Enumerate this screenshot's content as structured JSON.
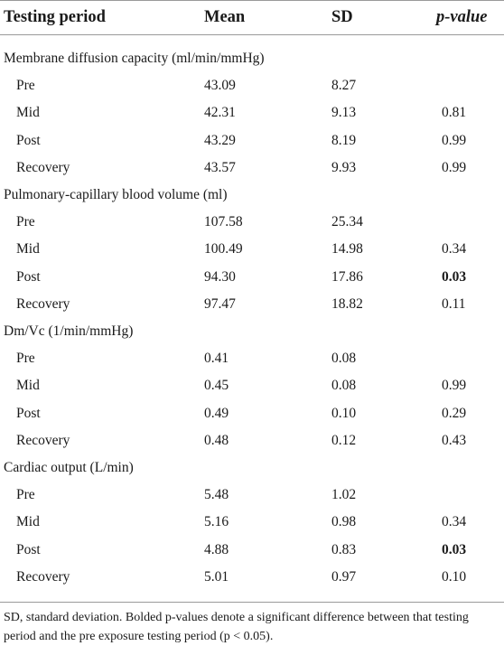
{
  "header": {
    "col_period": "Testing period",
    "col_mean": "Mean",
    "col_sd": "SD",
    "col_p": "p-value"
  },
  "groups": [
    {
      "title": "Membrane diffusion capacity (ml/min/mmHg)",
      "rows": [
        {
          "period": "Pre",
          "mean": "43.09",
          "sd": "8.27",
          "p": "",
          "sig": false
        },
        {
          "period": "Mid",
          "mean": "42.31",
          "sd": "9.13",
          "p": "0.81",
          "sig": false
        },
        {
          "period": "Post",
          "mean": "43.29",
          "sd": "8.19",
          "p": "0.99",
          "sig": false
        },
        {
          "period": "Recovery",
          "mean": "43.57",
          "sd": "9.93",
          "p": "0.99",
          "sig": false
        }
      ]
    },
    {
      "title": "Pulmonary-capillary blood volume (ml)",
      "rows": [
        {
          "period": "Pre",
          "mean": "107.58",
          "sd": "25.34",
          "p": "",
          "sig": false
        },
        {
          "period": "Mid",
          "mean": "100.49",
          "sd": "14.98",
          "p": "0.34",
          "sig": false
        },
        {
          "period": "Post",
          "mean": "94.30",
          "sd": "17.86",
          "p": "0.03",
          "sig": true
        },
        {
          "period": "Recovery",
          "mean": "97.47",
          "sd": "18.82",
          "p": "0.11",
          "sig": false
        }
      ]
    },
    {
      "title": "Dm/Vc (1/min/mmHg)",
      "rows": [
        {
          "period": "Pre",
          "mean": "0.41",
          "sd": "0.08",
          "p": "",
          "sig": false
        },
        {
          "period": "Mid",
          "mean": "0.45",
          "sd": "0.08",
          "p": "0.99",
          "sig": false
        },
        {
          "period": "Post",
          "mean": "0.49",
          "sd": "0.10",
          "p": "0.29",
          "sig": false
        },
        {
          "period": "Recovery",
          "mean": "0.48",
          "sd": "0.12",
          "p": "0.43",
          "sig": false
        }
      ]
    },
    {
      "title": "Cardiac output (L/min)",
      "rows": [
        {
          "period": "Pre",
          "mean": "5.48",
          "sd": "1.02",
          "p": "",
          "sig": false
        },
        {
          "period": "Mid",
          "mean": "5.16",
          "sd": "0.98",
          "p": "0.34",
          "sig": false
        },
        {
          "period": "Post",
          "mean": "4.88",
          "sd": "0.83",
          "p": "0.03",
          "sig": true
        },
        {
          "period": "Recovery",
          "mean": "5.01",
          "sd": "0.97",
          "p": "0.10",
          "sig": false
        }
      ]
    }
  ],
  "footnote": "SD, standard deviation. Bolded p-values denote a significant difference between that testing period and the pre exposure testing period (p < 0.05)."
}
